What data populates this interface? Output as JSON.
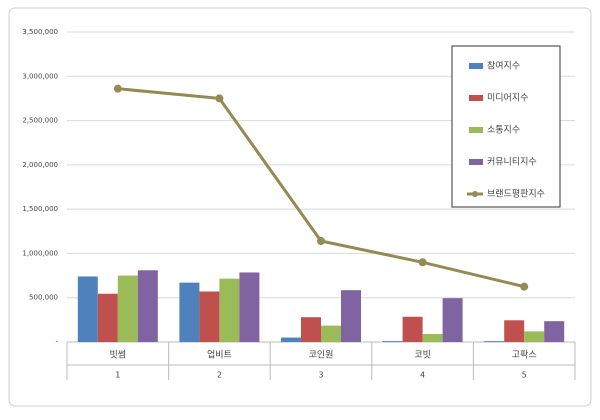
{
  "chart_data": {
    "type": "bar-line",
    "categories": [
      "빗썸",
      "업비트",
      "코인원",
      "코빗",
      "고팍스"
    ],
    "category_numbers": [
      "1",
      "2",
      "3",
      "4",
      "5"
    ],
    "series": [
      {
        "name": "참여지수",
        "color": "#4f81bd",
        "values": [
          740000,
          670000,
          50000,
          10000,
          10000
        ]
      },
      {
        "name": "미디어지수",
        "color": "#c0504d",
        "values": [
          545000,
          570000,
          280000,
          285000,
          245000
        ]
      },
      {
        "name": "소통지수",
        "color": "#9bbb59",
        "values": [
          750000,
          715000,
          185000,
          90000,
          120000
        ]
      },
      {
        "name": "커뮤니티지수",
        "color": "#8064a2",
        "values": [
          810000,
          785000,
          585000,
          495000,
          235000
        ]
      },
      {
        "name": "브랜드평판지수",
        "color": "#948a54",
        "type": "line",
        "values": [
          2860000,
          2750000,
          1140000,
          900000,
          625000
        ]
      }
    ],
    "ylim": [
      0,
      3500000
    ],
    "yticks": [
      {
        "value": 0,
        "label": "-"
      },
      {
        "value": 500000,
        "label": "500,000"
      },
      {
        "value": 1000000,
        "label": "1,000,000"
      },
      {
        "value": 1500000,
        "label": "1,500,000"
      },
      {
        "value": 2000000,
        "label": "2,000,000"
      },
      {
        "value": 2500000,
        "label": "2,500,000"
      },
      {
        "value": 3000000,
        "label": "3,000,000"
      },
      {
        "value": 3500000,
        "label": "3,500,000"
      }
    ],
    "grid": true,
    "legend": "upper right"
  }
}
